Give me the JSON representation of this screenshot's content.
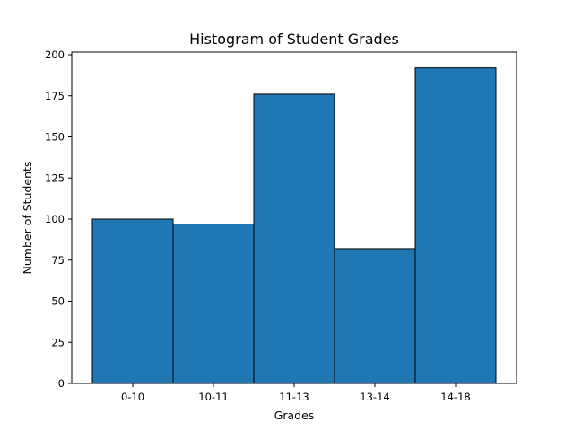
{
  "chart_data": {
    "type": "bar",
    "title": "Histogram of Student Grades",
    "xlabel": "Grades",
    "ylabel": "Number of Students",
    "categories": [
      "0-10",
      "10-11",
      "11-13",
      "13-14",
      "14-18"
    ],
    "values": [
      100,
      97,
      176,
      82,
      192
    ],
    "ylim": [
      0,
      200
    ],
    "yticks": [
      0,
      25,
      50,
      75,
      100,
      125,
      150,
      175,
      200
    ],
    "grid": false,
    "legend": "none",
    "bar_color": "#1f77b4",
    "edge_color": "#000000"
  }
}
